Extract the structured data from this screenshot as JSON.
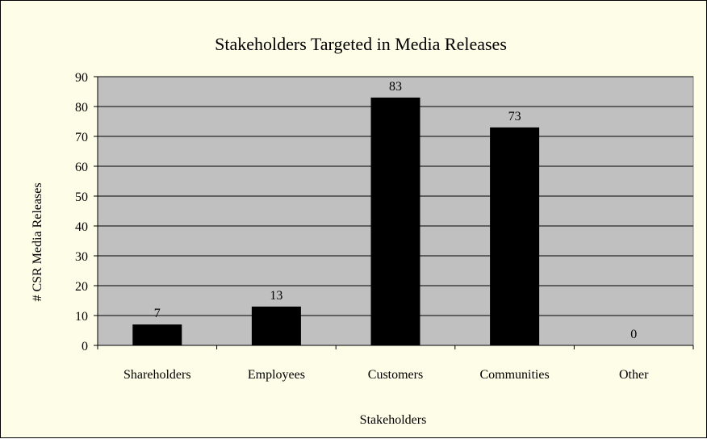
{
  "chart_data": {
    "type": "bar",
    "title": "Stakeholders Targeted in Media Releases",
    "xlabel": "Stakeholders",
    "ylabel": "# CSR Media Releases",
    "categories": [
      "Shareholders",
      "Employees",
      "Customers",
      "Communities",
      "Other"
    ],
    "values": [
      7,
      13,
      83,
      73,
      0
    ],
    "ylim": [
      0,
      90
    ],
    "yticks": [
      "0",
      "10",
      "20",
      "30",
      "40",
      "50",
      "60",
      "70",
      "80",
      "90"
    ],
    "grid": true,
    "legend": "none",
    "colors": {
      "bar": "#000000",
      "plot_bg": "#c0c0c0",
      "chart_bg": "#fdfde8",
      "gridline": "#000000"
    }
  }
}
